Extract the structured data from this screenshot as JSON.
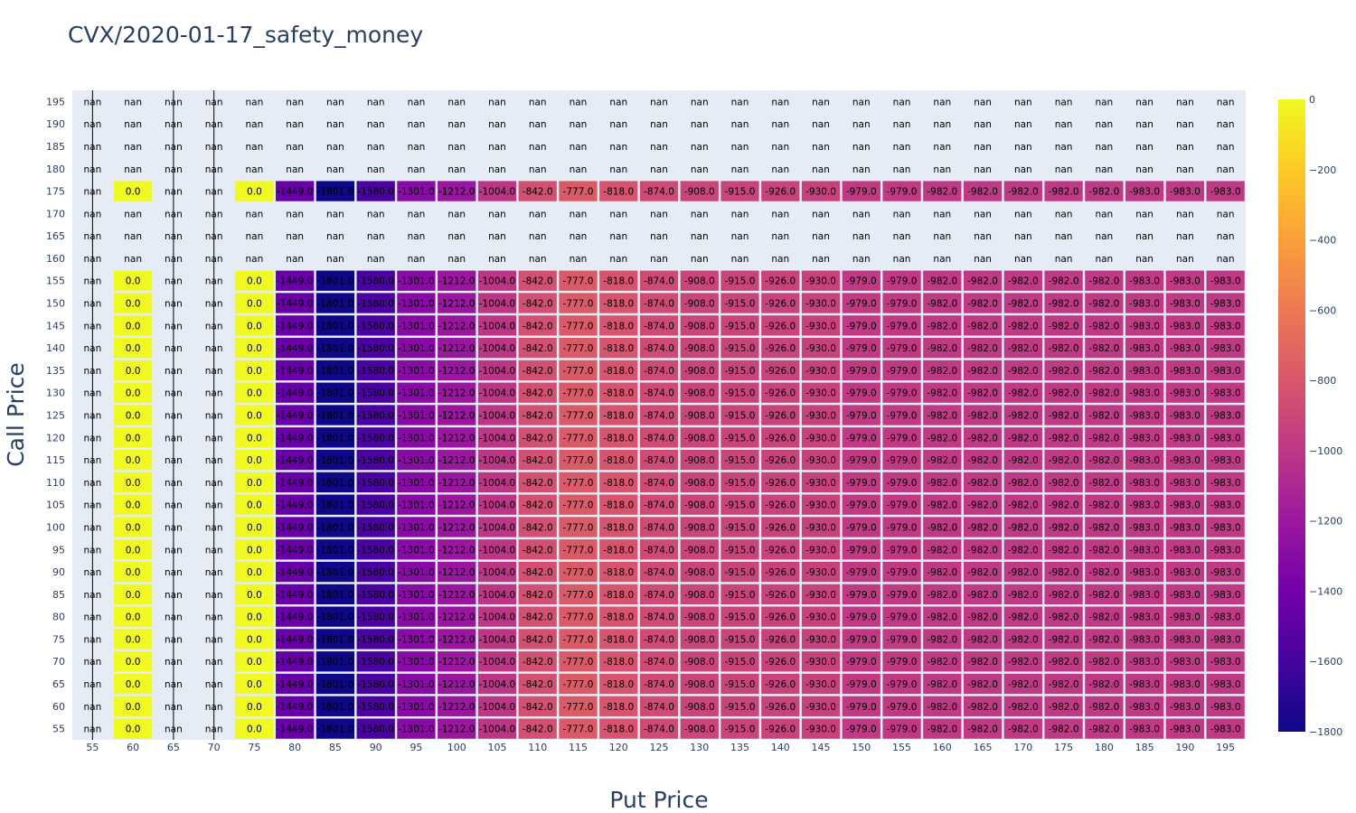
{
  "chart_data": {
    "type": "heatmap",
    "title": "CVX/2020-01-17_safety_money",
    "xlabel": "Put Price",
    "ylabel": "Call Price",
    "x": [
      55,
      60,
      65,
      70,
      75,
      80,
      85,
      90,
      95,
      100,
      105,
      110,
      115,
      120,
      125,
      130,
      135,
      140,
      145,
      150,
      155,
      160,
      165,
      170,
      175,
      180,
      185,
      190,
      195
    ],
    "y": [
      55,
      60,
      65,
      70,
      75,
      80,
      85,
      90,
      95,
      100,
      105,
      110,
      115,
      120,
      125,
      130,
      135,
      140,
      145,
      150,
      155,
      160,
      165,
      170,
      175,
      180,
      185,
      190,
      195
    ],
    "nan_label": "nan",
    "row_pattern": [
      null,
      0.0,
      null,
      null,
      0.0,
      -1449.0,
      -1801.0,
      -1580.0,
      -1301.0,
      -1212.0,
      -1004.0,
      -842.0,
      -777.0,
      -818.0,
      -874.0,
      -908.0,
      -915.0,
      -926.0,
      -930.0,
      -979.0,
      -979.0,
      -982.0,
      -982.0,
      -982.0,
      -982.0,
      -982.0,
      -983.0,
      -983.0,
      -983.0
    ],
    "filled_rows": [
      55,
      60,
      65,
      70,
      75,
      80,
      85,
      90,
      95,
      100,
      105,
      110,
      115,
      120,
      125,
      130,
      135,
      140,
      145,
      150,
      155,
      175
    ],
    "nan_rows": [
      160,
      165,
      170,
      180,
      185,
      190,
      195
    ],
    "zrange": [
      -1800,
      0
    ],
    "colorbar_ticks": [
      0,
      -200,
      -400,
      -600,
      -800,
      -1000,
      -1200,
      -1400,
      -1600,
      -1800
    ],
    "colorscale": "plasma",
    "colors": {
      "plot_bg": "#e5ecf6",
      "text": "#2a3f5f"
    }
  }
}
